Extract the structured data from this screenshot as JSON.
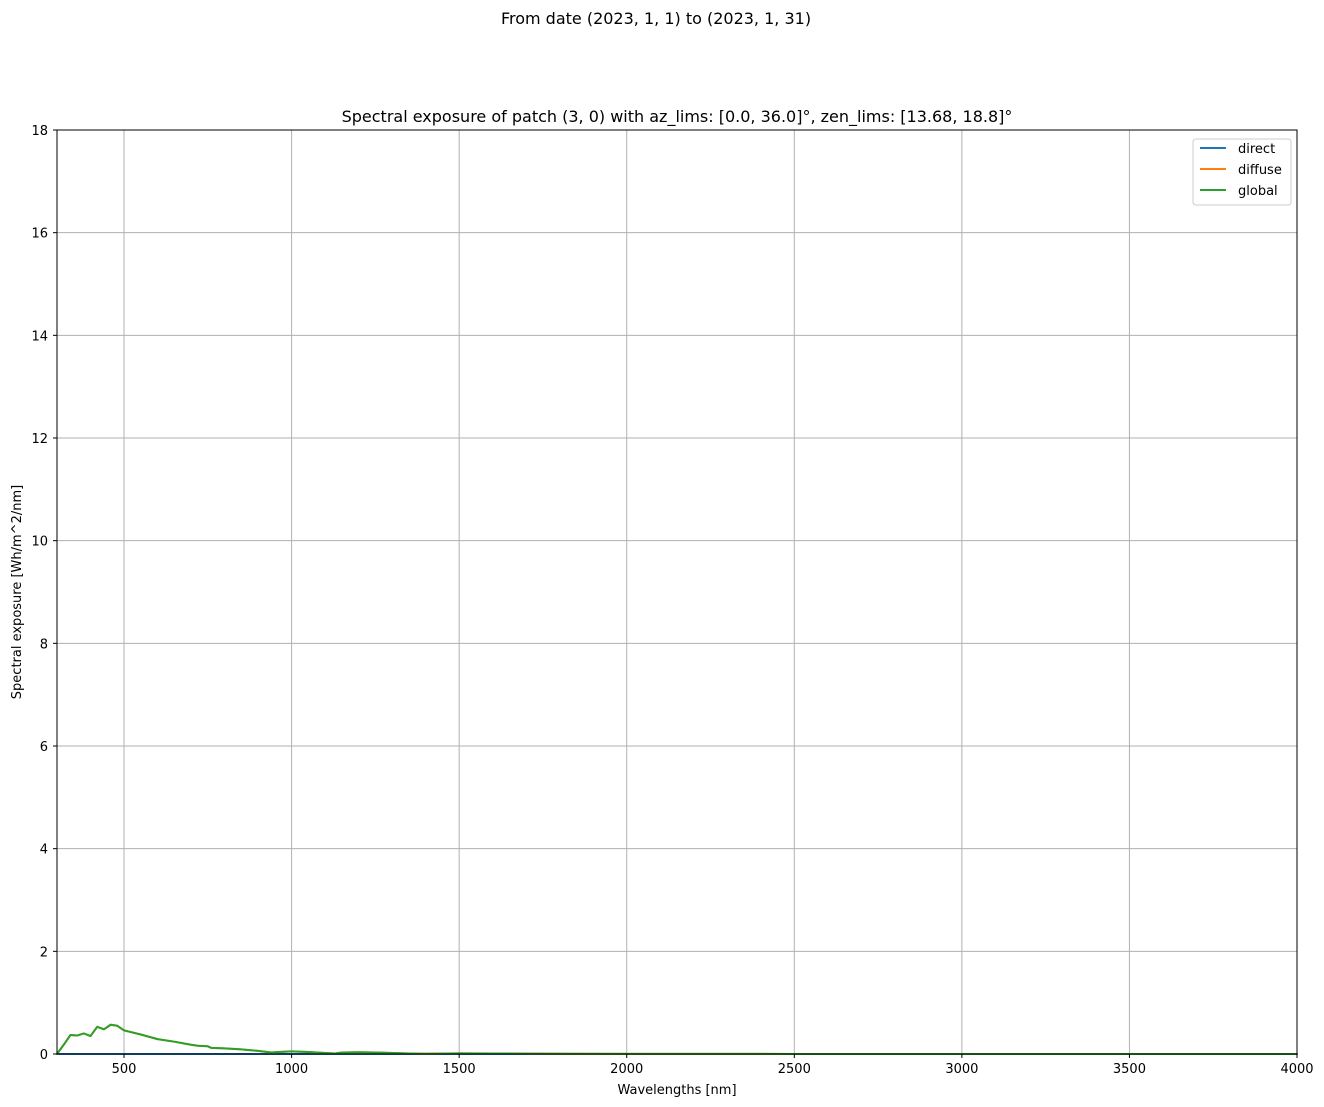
{
  "figure": {
    "suptitle": "From date (2023, 1, 1) to (2023, 1, 31)"
  },
  "chart_data": {
    "type": "line",
    "title": "Spectral exposure of patch (3, 0) with az_lims: [0.0, 36.0]°, zen_lims: [13.68, 18.8]°",
    "xlabel": "Wavelengths [nm]",
    "ylabel": "Spectral exposure [Wh/m^2/nm]",
    "xlim": [
      300,
      4000
    ],
    "ylim": [
      0,
      18
    ],
    "x_ticks": [
      500,
      1000,
      1500,
      2000,
      2500,
      3000,
      3500,
      4000
    ],
    "x_tick_labels": [
      "500",
      "1000",
      "1500",
      "2000",
      "2500",
      "3000",
      "3500",
      "4000"
    ],
    "y_ticks": [
      0,
      2,
      4,
      6,
      8,
      10,
      12,
      14,
      16,
      18
    ],
    "y_tick_labels": [
      "0",
      "2",
      "4",
      "6",
      "8",
      "10",
      "12",
      "14",
      "16",
      "18"
    ],
    "grid": true,
    "legend_position": "top-right",
    "series": [
      {
        "name": "direct",
        "color": "#1f77b4",
        "x": [
          300,
          4000
        ],
        "y": [
          0,
          0
        ]
      },
      {
        "name": "diffuse",
        "color": "#ff7f0e",
        "x": [
          300,
          320,
          340,
          360,
          380,
          400,
          420,
          440,
          460,
          480,
          500,
          550,
          600,
          650,
          700,
          720,
          750,
          760,
          800,
          850,
          900,
          940,
          960,
          1000,
          1050,
          1100,
          1130,
          1150,
          1200,
          1250,
          1300,
          1350,
          1400,
          1500,
          1600,
          1700,
          1800,
          2000,
          2200,
          2500,
          3000,
          3500,
          4000
        ],
        "y": [
          0,
          0.18,
          0.37,
          0.36,
          0.4,
          0.35,
          0.53,
          0.48,
          0.57,
          0.55,
          0.46,
          0.38,
          0.29,
          0.24,
          0.18,
          0.16,
          0.15,
          0.12,
          0.11,
          0.09,
          0.06,
          0.03,
          0.04,
          0.05,
          0.04,
          0.02,
          0.01,
          0.03,
          0.035,
          0.03,
          0.02,
          0.01,
          0.005,
          0.012,
          0.01,
          0.008,
          0.005,
          0.003,
          0.002,
          0.001,
          0.001,
          0.001,
          0.001
        ]
      },
      {
        "name": "global",
        "color": "#2ca02c",
        "x": [
          300,
          320,
          340,
          360,
          380,
          400,
          420,
          440,
          460,
          480,
          500,
          550,
          600,
          650,
          700,
          720,
          750,
          760,
          800,
          850,
          900,
          940,
          960,
          1000,
          1050,
          1100,
          1130,
          1150,
          1200,
          1250,
          1300,
          1350,
          1400,
          1500,
          1600,
          1700,
          1800,
          2000,
          2200,
          2500,
          3000,
          3500,
          4000
        ],
        "y": [
          0,
          0.18,
          0.37,
          0.36,
          0.4,
          0.35,
          0.53,
          0.48,
          0.57,
          0.55,
          0.46,
          0.38,
          0.29,
          0.24,
          0.18,
          0.16,
          0.15,
          0.12,
          0.11,
          0.09,
          0.06,
          0.03,
          0.04,
          0.05,
          0.04,
          0.02,
          0.01,
          0.03,
          0.035,
          0.03,
          0.02,
          0.01,
          0.005,
          0.012,
          0.01,
          0.008,
          0.005,
          0.003,
          0.002,
          0.001,
          0.001,
          0.001,
          0.001
        ]
      }
    ]
  }
}
